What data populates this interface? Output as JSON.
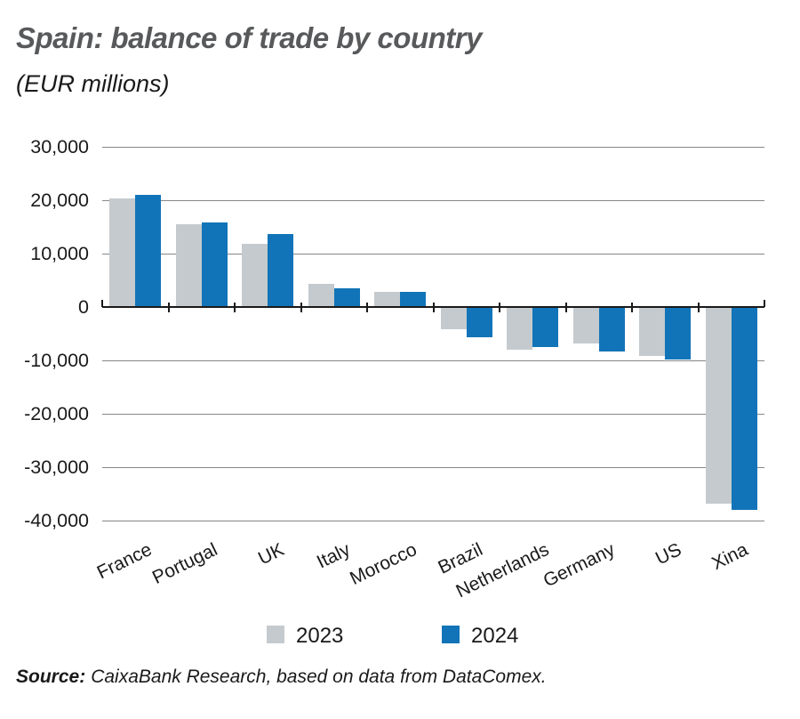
{
  "title": "Spain: balance of trade by country",
  "subtitle": "(EUR millions)",
  "legend": [
    {
      "label": "2023",
      "color": "#c5cace"
    },
    {
      "label": "2024",
      "color": "#1274b8"
    }
  ],
  "source": {
    "label": "Source:",
    "text": "CaixaBank Research, based on data from DataComex."
  },
  "colors": {
    "bar_2023": "#c5cace",
    "bar_2024": "#1274b8",
    "gridline": "#85878a",
    "zero_line": "#1a1a1a",
    "title_text": "#58595b",
    "axis_text": "#1a1a1a"
  },
  "chart_data": {
    "type": "bar",
    "title": "Spain: balance of trade by country",
    "subtitle": "(EUR millions)",
    "ylabel": "EUR millions",
    "categories": [
      "France",
      "Portugal",
      "UK",
      "Italy",
      "Morocco",
      "Brazil",
      "Netherlands",
      "Germany",
      "US",
      "Xina"
    ],
    "series": [
      {
        "name": "2023",
        "color": "#c5cace",
        "values": [
          20400,
          15500,
          11800,
          4400,
          2900,
          -4100,
          -8000,
          -6900,
          -9200,
          -36800
        ]
      },
      {
        "name": "2024",
        "color": "#1274b8",
        "values": [
          21000,
          15900,
          13600,
          3500,
          2800,
          -5600,
          -7500,
          -8400,
          -9800,
          -38000
        ]
      }
    ],
    "ylim": [
      -40000,
      30000
    ],
    "ytick_interval": 10000,
    "yticks": [
      30000,
      20000,
      10000,
      0,
      -10000,
      -20000,
      -30000,
      -40000
    ],
    "ytick_labels": [
      "30,000",
      "20,000",
      "10,000",
      "0",
      "-10,000",
      "-20,000",
      "-30,000",
      "-40,000"
    ],
    "grid": true,
    "legend_position": "bottom"
  }
}
